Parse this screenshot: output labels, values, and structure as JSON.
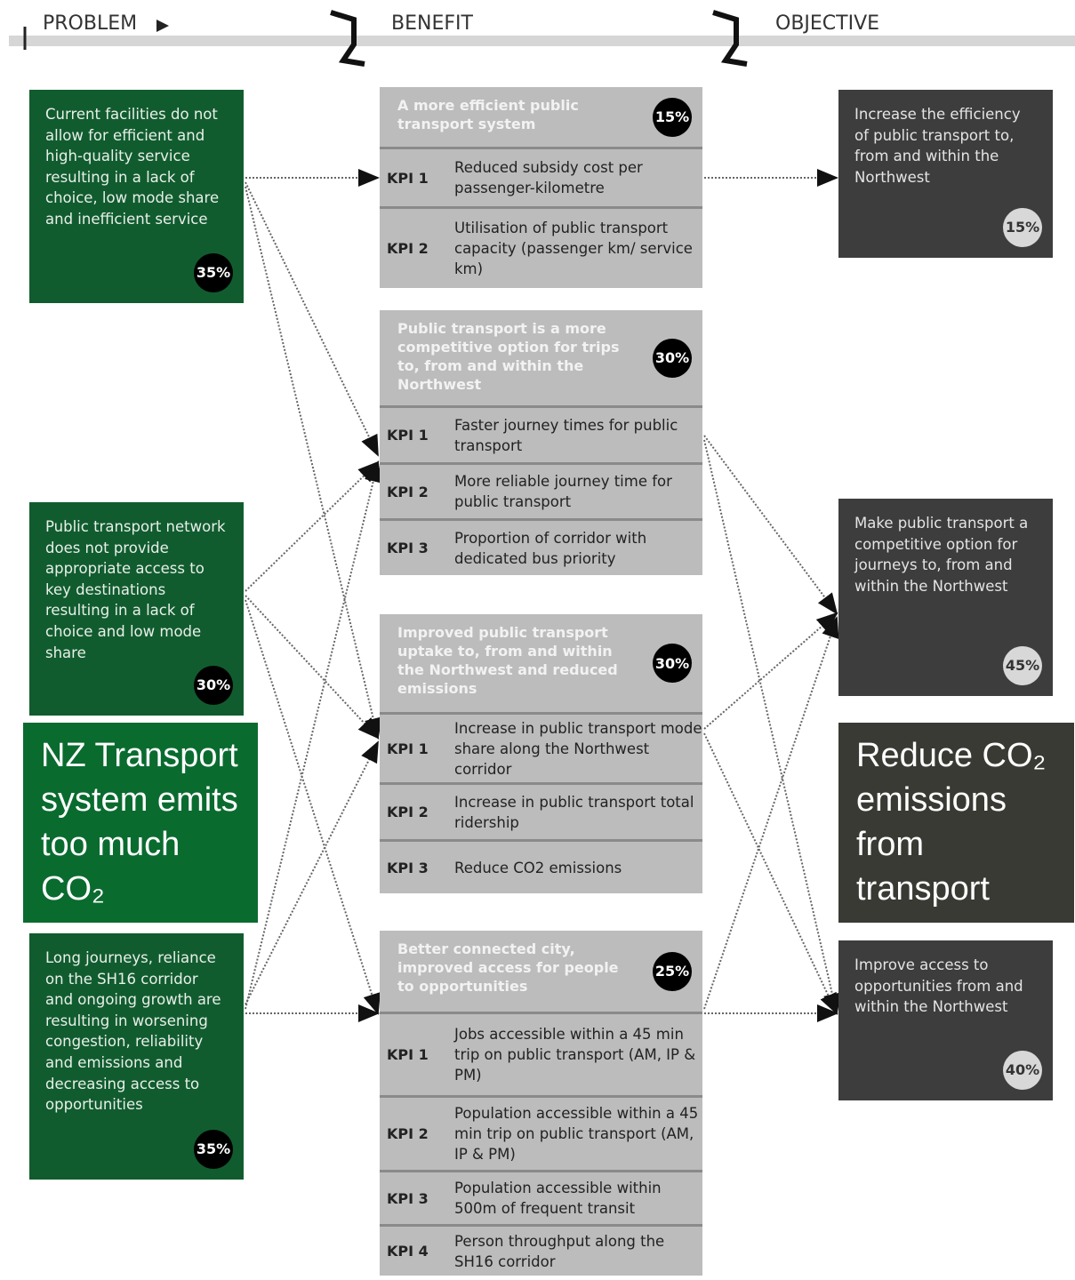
{
  "header": {
    "problem": "PROBLEM",
    "benefit": "BENEFIT",
    "objective": "OBJECTIVE"
  },
  "problems": [
    {
      "text": "Current facilities do not allow for efficient and high-quality service resulting in a lack of choice, low mode share and inefficient service",
      "share": "35%"
    },
    {
      "text": "Public transport network does not provide appropriate access to key destinations resulting in a lack of choice and low mode share",
      "share": "30%"
    },
    {
      "text": "Long journeys, reliance on the SH16 corridor and ongoing growth are resulting in worsening congestion, reliability and emissions and decreasing access to opportunities",
      "share": "35%"
    }
  ],
  "benefits": [
    {
      "title": "A more efficient public transport system",
      "share": "15%",
      "kpis": [
        {
          "label": "KPI 1",
          "text": "Reduced subsidy cost per passenger-kilometre"
        },
        {
          "label": "KPI 2",
          "text": "Utilisation of public transport capacity (passenger km/ service km)"
        }
      ]
    },
    {
      "title": "Public transport is a more competitive option for trips to, from and within the Northwest",
      "share": "30%",
      "kpis": [
        {
          "label": "KPI 1",
          "text": "Faster journey times for public transport"
        },
        {
          "label": "KPI 2",
          "text": "More reliable journey time for public transport"
        },
        {
          "label": "KPI 3",
          "text": "Proportion of corridor with dedicated bus priority"
        }
      ]
    },
    {
      "title": "Improved public transport uptake to, from and within the Northwest and reduced emissions",
      "share": "30%",
      "kpis": [
        {
          "label": "KPI 1",
          "text": "Increase in public transport mode share along the Northwest corridor"
        },
        {
          "label": "KPI 2",
          "text": "Increase in public transport total ridership"
        },
        {
          "label": "KPI 3",
          "text": "Reduce CO2 emissions"
        }
      ]
    },
    {
      "title": "Better connected city, improved access for people to opportunities",
      "share": "25%",
      "kpis": [
        {
          "label": "KPI 1",
          "text": "Jobs accessible within a 45 min trip on public transport (AM, IP & PM)"
        },
        {
          "label": "KPI 2",
          "text": "Population accessible within a 45 min trip on public transport (AM, IP & PM)"
        },
        {
          "label": "KPI 3",
          "text": "Population accessible within 500m of frequent transit"
        },
        {
          "label": "KPI 4",
          "text": "Person throughput along the SH16 corridor"
        }
      ]
    }
  ],
  "objectives": [
    {
      "text": "Increase the efficiency of public transport to, from and within the Northwest",
      "share": "15%"
    },
    {
      "text": "Make public transport a competitive option for journeys to, from and within the Northwest",
      "share": "45%"
    },
    {
      "text": "Improve access to opportunities from and within the Northwest",
      "share": "40%"
    }
  ],
  "highlights": {
    "problem": "NZ Transport system emits too much CO₂",
    "objective": "Reduce CO₂ emissions from transport"
  }
}
